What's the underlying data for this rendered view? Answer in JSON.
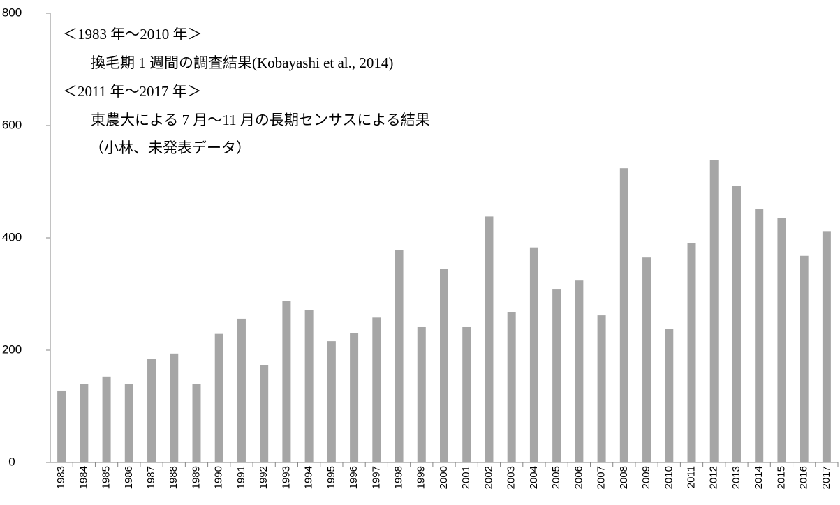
{
  "chart_data": {
    "type": "bar",
    "annotations": [
      "＜1983 年〜2010 年＞",
      "換毛期 1 週間の調査結果(Kobayashi et al., 2014)",
      "＜2011 年〜2017 年＞",
      "東農大による 7 月〜11 月の長期センサスによる結果",
      "（小林、未発表データ）"
    ],
    "categories": [
      "1983",
      "1984",
      "1985",
      "1986",
      "1987",
      "1988",
      "1989",
      "1990",
      "1991",
      "1992",
      "1993",
      "1994",
      "1995",
      "1996",
      "1997",
      "1998",
      "1999",
      "2000",
      "2001",
      "2002",
      "2003",
      "2004",
      "2005",
      "2006",
      "2007",
      "2008",
      "2009",
      "2010",
      "2011",
      "2012",
      "2013",
      "2014",
      "2015",
      "2016",
      "2017"
    ],
    "values": [
      128,
      140,
      153,
      140,
      184,
      194,
      140,
      229,
      256,
      173,
      288,
      271,
      216,
      231,
      258,
      378,
      241,
      345,
      241,
      438,
      268,
      383,
      308,
      324,
      262,
      524,
      365,
      238,
      391,
      539,
      492,
      452,
      436,
      368,
      412
    ],
    "color": "#a6a6a6",
    "ylim": [
      0,
      800
    ],
    "yticks": [
      0,
      200,
      400,
      600,
      800
    ],
    "grid": false
  }
}
